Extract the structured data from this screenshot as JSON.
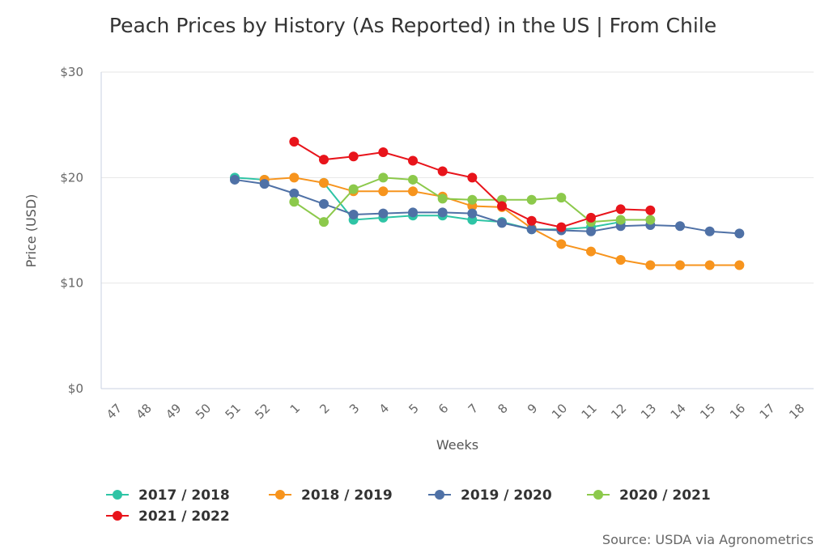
{
  "chart_data": {
    "type": "line",
    "title": "Peach Prices by History (As Reported) in the US | From Chile",
    "xlabel": "Weeks",
    "ylabel": "Price (USD)",
    "categories": [
      "47",
      "48",
      "49",
      "50",
      "51",
      "52",
      "1",
      "2",
      "3",
      "4",
      "5",
      "6",
      "7",
      "8",
      "9",
      "10",
      "11",
      "12",
      "13",
      "14",
      "15",
      "16",
      "17",
      "18"
    ],
    "y_ticks": [
      "$0",
      "$10",
      "$20",
      "$30"
    ],
    "ylim": [
      0,
      30
    ],
    "grid": "horizontal",
    "legend_position": "bottom-left",
    "series": [
      {
        "name": "2017 / 2018",
        "color": "#2ec4a5",
        "values": [
          null,
          null,
          null,
          null,
          20.0,
          19.8,
          null,
          19.5,
          16.0,
          16.2,
          16.4,
          16.4,
          16.0,
          15.8,
          15.1,
          15.1,
          15.3,
          15.8,
          null,
          null,
          null,
          null,
          null,
          null
        ]
      },
      {
        "name": "2018 / 2019",
        "color": "#f7941d",
        "values": [
          null,
          null,
          null,
          null,
          null,
          19.8,
          20.0,
          19.5,
          18.7,
          18.7,
          18.7,
          18.2,
          17.3,
          17.2,
          15.2,
          13.7,
          13.0,
          12.2,
          11.7,
          11.7,
          11.7,
          11.7,
          null,
          null
        ]
      },
      {
        "name": "2019 / 2020",
        "color": "#4f71a6",
        "values": [
          null,
          null,
          null,
          null,
          19.8,
          19.4,
          18.5,
          17.5,
          16.5,
          16.6,
          16.7,
          16.7,
          16.6,
          15.7,
          15.1,
          15.0,
          14.9,
          15.4,
          15.5,
          15.4,
          14.9,
          14.7,
          null,
          null
        ]
      },
      {
        "name": "2020 / 2021",
        "color": "#8cc94b",
        "values": [
          null,
          null,
          null,
          null,
          null,
          null,
          17.7,
          15.8,
          18.9,
          20.0,
          19.8,
          18.0,
          17.9,
          17.9,
          17.9,
          18.1,
          15.8,
          16.0,
          16.0,
          null,
          null,
          null,
          null,
          null
        ]
      },
      {
        "name": "2021 / 2022",
        "color": "#e8141b",
        "values": [
          null,
          null,
          null,
          null,
          null,
          null,
          23.4,
          21.7,
          22.0,
          22.4,
          21.6,
          20.6,
          20.0,
          17.3,
          15.9,
          15.3,
          16.2,
          17.0,
          16.9,
          null,
          null,
          null,
          null,
          null
        ]
      }
    ],
    "source": "Source: USDA via Agronometrics"
  }
}
